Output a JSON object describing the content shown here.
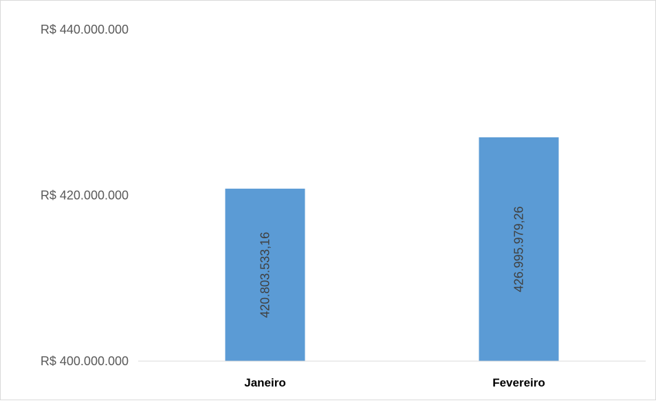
{
  "chart_data": {
    "type": "bar",
    "categories": [
      "Janeiro",
      "Fevereiro"
    ],
    "values": [
      420803533.16,
      426995979.26
    ],
    "value_labels": [
      "420.803.533,16",
      "426.995.979,26"
    ],
    "yticks": [
      400000000,
      420000000,
      440000000
    ],
    "ytick_labels": [
      "R$ 400.000.000",
      "R$ 420.000.000",
      "R$ 440.000.000"
    ],
    "ylim": [
      400000000,
      440000000
    ],
    "title": "",
    "xlabel": "",
    "ylabel": "",
    "grid": false,
    "legend": "none",
    "bar_color": "#5b9bd5",
    "data_label_orientation": "vertical"
  }
}
